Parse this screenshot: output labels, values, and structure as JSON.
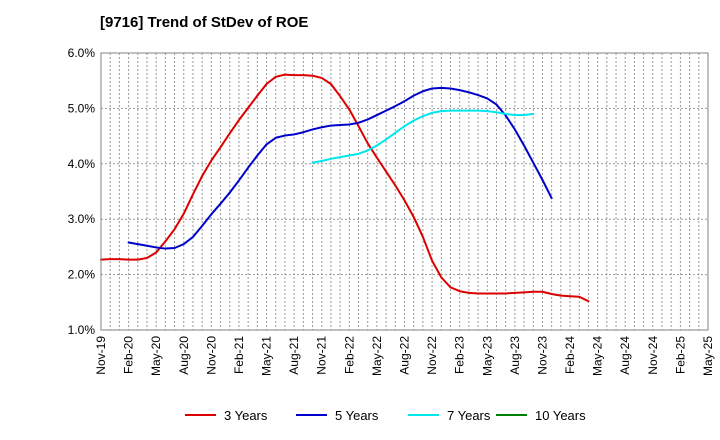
{
  "chart_data": {
    "type": "line",
    "title": "[9716]  Trend of StDev of ROE",
    "xlabel": "",
    "ylabel": "",
    "x_labels": [
      "Nov-19",
      "Feb-20",
      "May-20",
      "Aug-20",
      "Nov-20",
      "Feb-21",
      "May-21",
      "Aug-21",
      "Nov-21",
      "Feb-22",
      "May-22",
      "Aug-22",
      "Nov-22",
      "Feb-23",
      "May-23",
      "Aug-23",
      "Nov-23",
      "Feb-24",
      "May-24",
      "Aug-24",
      "Nov-24",
      "Feb-25",
      "May-25"
    ],
    "y_ticks": [
      "1.0%",
      "2.0%",
      "3.0%",
      "4.0%",
      "5.0%",
      "6.0%"
    ],
    "ylim": [
      1.0,
      6.0
    ],
    "grid": true,
    "legend_position": "bottom",
    "series": [
      {
        "name": "3 Years",
        "color": "#dd0000",
        "values": [
          2.27,
          2.28,
          2.28,
          2.27,
          2.27,
          2.3,
          2.4,
          2.6,
          2.82,
          3.1,
          3.45,
          3.78,
          4.06,
          4.3,
          4.55,
          4.79,
          5.01,
          5.23,
          5.44,
          5.57,
          5.61,
          5.6,
          5.6,
          5.59,
          5.55,
          5.44,
          5.22,
          4.98,
          4.68,
          4.37,
          4.11,
          3.86,
          3.61,
          3.34,
          3.04,
          2.68,
          2.25,
          1.95,
          1.77,
          1.7,
          1.67,
          1.66,
          1.66,
          1.66,
          1.66,
          1.67,
          1.68,
          1.69,
          1.69,
          1.65,
          1.62,
          1.61,
          1.6,
          1.52
        ]
      },
      {
        "name": "5 Years",
        "color": "#0000cc",
        "values": [
          null,
          null,
          null,
          2.58,
          2.55,
          2.52,
          2.49,
          2.47,
          2.48,
          2.55,
          2.68,
          2.88,
          3.09,
          3.28,
          3.48,
          3.7,
          3.93,
          4.15,
          4.35,
          4.47,
          4.51,
          4.53,
          4.57,
          4.62,
          4.66,
          4.69,
          4.7,
          4.71,
          4.74,
          4.8,
          4.88,
          4.96,
          5.04,
          5.13,
          5.23,
          5.31,
          5.36,
          5.37,
          5.36,
          5.33,
          5.29,
          5.24,
          5.18,
          5.07,
          4.87,
          4.62,
          4.33,
          4.02,
          3.71,
          3.38
        ]
      },
      {
        "name": "7 Years",
        "color": "#00e5ee",
        "values": [
          null,
          null,
          null,
          null,
          null,
          null,
          null,
          null,
          null,
          null,
          null,
          null,
          null,
          null,
          null,
          null,
          null,
          null,
          null,
          null,
          null,
          null,
          null,
          4.02,
          4.05,
          4.09,
          4.12,
          4.15,
          4.18,
          4.24,
          4.33,
          4.44,
          4.56,
          4.68,
          4.78,
          4.86,
          4.92,
          4.95,
          4.96,
          4.96,
          4.96,
          4.96,
          4.95,
          4.93,
          4.9,
          4.88,
          4.88,
          4.9
        ]
      },
      {
        "name": "10 Years",
        "color": "#008000",
        "values": []
      }
    ]
  }
}
